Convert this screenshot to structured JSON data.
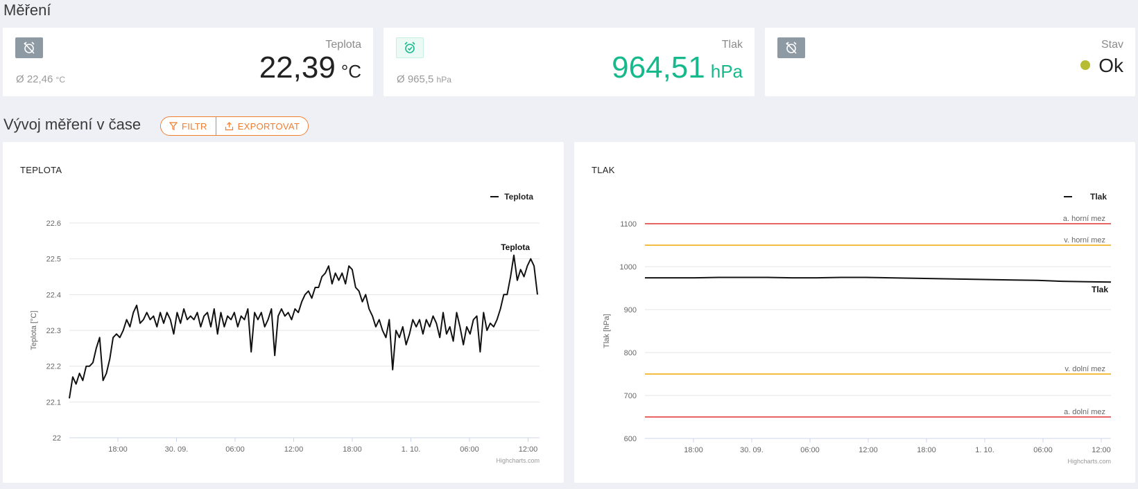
{
  "header": {
    "title": "Měření"
  },
  "cards": [
    {
      "label": "Teplota",
      "value": "22,39",
      "unit": "°C",
      "avg": "Ø 22,46",
      "avg_unit": "°C",
      "color": "#222222",
      "icon": "alarm-off-icon"
    },
    {
      "label": "Tlak",
      "value": "964,51",
      "unit": "hPa",
      "avg": "Ø 965,5",
      "avg_unit": "hPa",
      "color": "#16b98b",
      "icon": "alarm-on-icon"
    },
    {
      "label": "Stav",
      "value": "Ok",
      "status_color": "#b6bd35",
      "icon": "alarm-off-icon"
    }
  ],
  "trend": {
    "title": "Vývoj měření v čase",
    "filter_label": "FILTR",
    "export_label": "EXPORTOVAT",
    "accent": "#f07c2e"
  },
  "charts": {
    "temp": {
      "title": "TEPLOTA",
      "credit": "Highcharts.com"
    },
    "press": {
      "title": "TLAK",
      "credit": "Highcharts.com"
    }
  },
  "chart_data": [
    {
      "type": "line",
      "title": "TEPLOTA",
      "ylabel": "Teplota [°C]",
      "ylim": [
        22,
        22.6
      ],
      "yticks": [
        "22",
        "22.1",
        "22.2",
        "22.3",
        "22.4",
        "22.5",
        "22.6"
      ],
      "xticks": [
        "18:00",
        "30. 09.",
        "06:00",
        "12:00",
        "18:00",
        "1. 10.",
        "06:00",
        "12:00"
      ],
      "legend": "top-right",
      "series": [
        {
          "name": "Teplota",
          "label": "Teplota",
          "values": [
            22.11,
            22.17,
            22.15,
            22.18,
            22.16,
            22.2,
            22.2,
            22.21,
            22.25,
            22.28,
            22.16,
            22.18,
            22.22,
            22.28,
            22.29,
            22.28,
            22.3,
            22.33,
            22.31,
            22.35,
            22.37,
            22.32,
            22.33,
            22.35,
            22.33,
            22.34,
            22.31,
            22.35,
            22.32,
            22.35,
            22.33,
            22.29,
            22.35,
            22.32,
            22.36,
            22.33,
            22.34,
            22.33,
            22.35,
            22.31,
            22.34,
            22.35,
            22.31,
            22.36,
            22.29,
            22.35,
            22.31,
            22.34,
            22.33,
            22.35,
            22.31,
            22.34,
            22.33,
            22.36,
            22.24,
            22.35,
            22.33,
            22.35,
            22.31,
            22.33,
            22.36,
            22.23,
            22.34,
            22.36,
            22.34,
            22.35,
            22.33,
            22.36,
            22.35,
            22.38,
            22.4,
            22.41,
            22.39,
            22.42,
            22.42,
            22.45,
            22.46,
            22.48,
            22.43,
            22.46,
            22.44,
            22.46,
            22.43,
            22.48,
            22.47,
            22.42,
            22.41,
            22.38,
            22.4,
            22.36,
            22.34,
            22.31,
            22.33,
            22.3,
            22.28,
            22.33,
            22.19,
            22.3,
            22.28,
            22.31,
            22.26,
            22.29,
            22.33,
            22.31,
            22.33,
            22.29,
            22.33,
            22.31,
            22.34,
            22.32,
            22.28,
            22.35,
            22.29,
            22.31,
            22.27,
            22.35,
            22.31,
            22.26,
            22.31,
            22.29,
            22.33,
            22.34,
            22.24,
            22.35,
            22.3,
            22.32,
            22.31,
            22.33,
            22.36,
            22.4,
            22.4,
            22.45,
            22.51,
            22.44,
            22.47,
            22.45,
            22.48,
            22.5,
            22.48,
            22.4
          ]
        }
      ]
    },
    {
      "type": "line",
      "title": "TLAK",
      "ylabel": "Tlak [hPa]",
      "ylim": [
        600,
        1100
      ],
      "yticks": [
        "600",
        "700",
        "800",
        "900",
        "1000",
        "1100"
      ],
      "xticks": [
        "18:00",
        "30. 09.",
        "06:00",
        "12:00",
        "18:00",
        "1. 10.",
        "06:00",
        "12:00"
      ],
      "legend": "top-right",
      "series": [
        {
          "name": "Tlak",
          "label": "Tlak",
          "values": [
            974,
            974,
            974,
            975,
            975,
            975,
            974,
            974,
            975,
            975,
            974,
            973,
            972,
            971,
            970,
            969,
            968,
            966,
            965,
            964
          ]
        }
      ],
      "plot_lines": [
        {
          "label": "a. horní mez",
          "value": 1100,
          "color": "#e0312e"
        },
        {
          "label": "v. horní mez",
          "value": 1050,
          "color": "#f0a500"
        },
        {
          "label": "v. dolní mez",
          "value": 750,
          "color": "#f0a500"
        },
        {
          "label": "a. dolní mez",
          "value": 650,
          "color": "#e0312e"
        }
      ]
    }
  ]
}
